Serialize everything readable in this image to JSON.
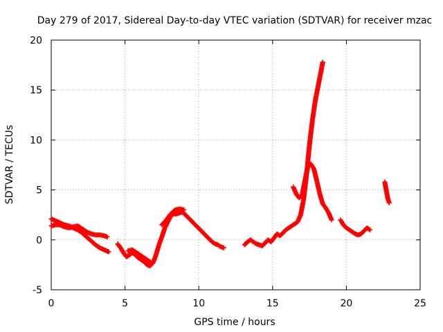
{
  "chart_data": {
    "type": "scatter",
    "title": "Day 279 of 2017, Sidereal Day-to-day VTEC variation (SDTVAR) for receiver mzac",
    "xlabel": "GPS time / hours",
    "ylabel": "SDTVAR / TECUs",
    "xlim": [
      0,
      25
    ],
    "ylim": [
      -5,
      20
    ],
    "xticks": [
      0,
      5,
      10,
      15,
      20,
      25
    ],
    "yticks": [
      -5,
      0,
      5,
      10,
      15,
      20
    ],
    "xtick_labels": [
      "0",
      "5",
      "10",
      "15",
      "20",
      "25"
    ],
    "ytick_labels": [
      "-5",
      "0",
      "5",
      "10",
      "15",
      "20"
    ],
    "grid": true,
    "marker": "+",
    "series": [
      {
        "name": "SDTVAR",
        "color": "#ff0000",
        "segments": [
          {
            "x": [
              0.0,
              0.3,
              0.6,
              0.9,
              1.2,
              1.5,
              1.8,
              2.1,
              2.4,
              2.7,
              3.0,
              3.3,
              3.6,
              3.9
            ],
            "y": [
              2.1,
              1.9,
              1.7,
              1.5,
              1.4,
              1.2,
              1.0,
              0.7,
              0.3,
              -0.1,
              -0.5,
              -0.8,
              -1.0,
              -1.2
            ]
          },
          {
            "x": [
              0.0,
              0.3,
              0.6,
              0.9,
              1.2,
              1.5,
              1.8,
              2.1,
              2.4,
              2.7,
              3.0,
              3.3,
              3.6,
              3.8
            ],
            "y": [
              1.4,
              1.5,
              1.5,
              1.3,
              1.2,
              1.3,
              1.4,
              1.1,
              0.8,
              0.6,
              0.5,
              0.5,
              0.4,
              0.3
            ]
          },
          {
            "x": [
              4.5,
              4.7,
              4.9,
              5.1,
              5.3,
              5.5,
              5.7,
              5.9,
              6.1,
              6.3,
              6.5,
              6.7,
              6.9,
              7.1,
              7.3,
              7.5,
              7.7,
              7.9,
              8.1,
              8.3,
              8.5,
              8.7,
              8.9,
              9.1,
              9.3,
              9.5,
              9.7,
              9.9,
              10.1,
              10.3,
              10.5,
              10.7,
              10.9,
              11.1,
              11.3,
              11.5,
              11.7
            ],
            "y": [
              -0.4,
              -0.8,
              -1.3,
              -1.7,
              -1.5,
              -1.3,
              -1.5,
              -1.8,
              -2.0,
              -2.2,
              -2.5,
              -2.6,
              -2.3,
              -1.5,
              -0.5,
              0.3,
              1.2,
              1.8,
              2.4,
              2.6,
              2.6,
              2.7,
              2.8,
              2.5,
              2.2,
              1.9,
              1.6,
              1.3,
              1.0,
              0.7,
              0.4,
              0.1,
              -0.2,
              -0.4,
              -0.5,
              -0.7,
              -0.8
            ]
          },
          {
            "x": [
              5.2,
              5.5,
              5.8,
              6.1,
              6.4,
              6.7
            ],
            "y": [
              -1.1,
              -1.0,
              -1.3,
              -1.6,
              -1.9,
              -2.2
            ]
          },
          {
            "x": [
              7.5,
              7.8,
              8.1,
              8.4,
              8.7,
              9.0
            ],
            "y": [
              1.5,
              2.0,
              2.6,
              3.0,
              3.1,
              3.0
            ]
          },
          {
            "x": [
              13.1,
              13.3,
              13.5,
              13.7,
              13.9,
              14.1,
              14.3,
              14.5,
              14.7,
              14.9,
              15.1,
              15.3,
              15.5,
              15.7,
              15.9,
              16.1,
              16.3,
              16.5,
              16.7,
              16.9,
              17.1,
              17.3,
              17.5,
              17.7,
              17.9,
              18.1,
              18.3,
              18.4
            ],
            "y": [
              -0.5,
              -0.2,
              0.0,
              -0.2,
              -0.4,
              -0.5,
              -0.6,
              -0.3,
              0.0,
              -0.2,
              0.2,
              0.6,
              0.4,
              0.7,
              1.0,
              1.2,
              1.4,
              1.6,
              1.8,
              2.5,
              4.0,
              6.5,
              9.5,
              12.0,
              14.0,
              15.5,
              17.0,
              17.8
            ]
          },
          {
            "x": [
              16.4,
              16.6,
              16.8,
              17.0,
              17.2,
              17.4,
              17.6,
              17.8,
              18.0,
              18.2,
              18.4,
              18.6,
              18.8,
              19.0
            ],
            "y": [
              5.3,
              4.6,
              4.2,
              4.5,
              6.0,
              7.4,
              7.6,
              7.1,
              5.9,
              4.6,
              3.6,
              3.2,
              2.7,
              2.0
            ]
          },
          {
            "x": [
              19.6,
              19.8,
              20.0,
              20.2,
              20.4,
              20.6,
              20.8,
              21.0,
              21.2,
              21.4,
              21.6
            ],
            "y": [
              2.0,
              1.5,
              1.2,
              1.0,
              0.8,
              0.6,
              0.5,
              0.6,
              0.9,
              1.2,
              1.0
            ]
          },
          {
            "x": [
              22.6,
              22.7,
              22.8,
              22.9
            ],
            "y": [
              5.8,
              5.0,
              4.2,
              3.7
            ]
          }
        ]
      }
    ]
  }
}
